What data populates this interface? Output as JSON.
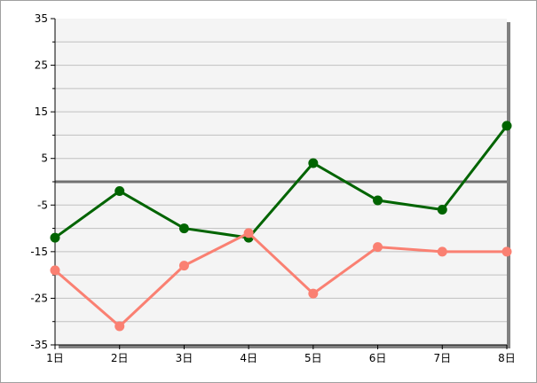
{
  "chart_data": {
    "type": "line",
    "categories": [
      "1日",
      "2日",
      "3日",
      "4日",
      "5日",
      "6日",
      "7日",
      "8日"
    ],
    "y_ticks": [
      "35",
      "25",
      "15",
      "5",
      "-5",
      "-15",
      "-25",
      "-35"
    ],
    "ylim": [
      -35,
      35
    ],
    "grid": true,
    "reference_line": 0,
    "series": [
      {
        "color": "#006400",
        "values": [
          -12,
          -2,
          -10,
          -12,
          4,
          -4,
          -6,
          12
        ]
      },
      {
        "color": "#fa8072",
        "values": [
          -19,
          -31,
          -18,
          -11,
          -24,
          -14,
          -15,
          -15
        ]
      }
    ]
  }
}
